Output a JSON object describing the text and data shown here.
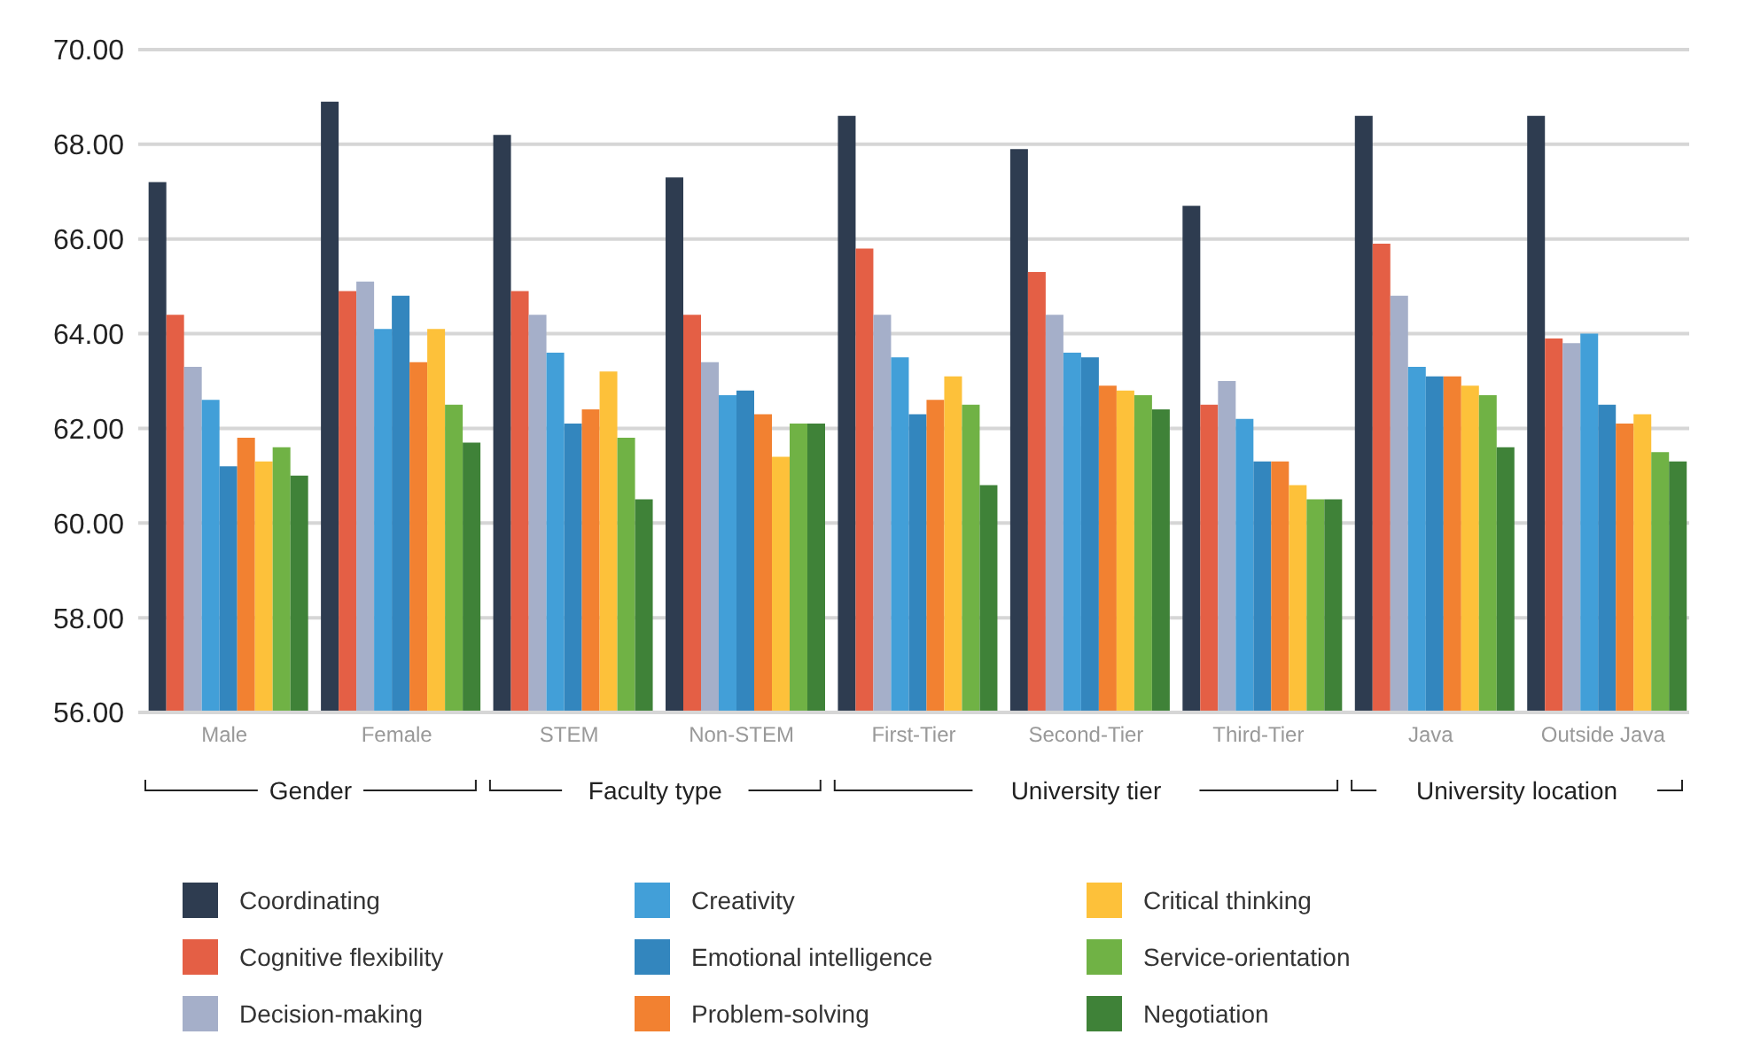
{
  "chart_data": {
    "type": "bar",
    "categories": [
      "Male",
      "Female",
      "STEM",
      "Non-STEM",
      "First-Tier",
      "Second-Tier",
      "Third-Tier",
      "Java",
      "Outside Java"
    ],
    "series": [
      {
        "name": "Coordinating",
        "color": "#2e3c50",
        "values": [
          67.2,
          68.9,
          68.2,
          67.3,
          68.6,
          67.9,
          66.7,
          68.6,
          68.6
        ]
      },
      {
        "name": "Cognitive flexibility",
        "color": "#e45f45",
        "values": [
          64.4,
          64.9,
          64.9,
          64.4,
          65.8,
          65.3,
          62.5,
          65.9,
          63.9
        ]
      },
      {
        "name": "Decision-making",
        "color": "#a5afc9",
        "values": [
          63.3,
          65.1,
          64.4,
          63.4,
          64.4,
          64.4,
          63.0,
          64.8,
          63.8
        ]
      },
      {
        "name": "Creativity",
        "color": "#429fd8",
        "values": [
          62.6,
          64.1,
          63.6,
          62.7,
          63.5,
          63.6,
          62.2,
          63.3,
          64.0
        ]
      },
      {
        "name": "Emotional intelligence",
        "color": "#3386be",
        "values": [
          61.2,
          64.8,
          62.1,
          62.8,
          62.3,
          63.5,
          61.3,
          63.1,
          62.5
        ]
      },
      {
        "name": "Problem-solving",
        "color": "#f28131",
        "values": [
          61.8,
          63.4,
          62.4,
          62.3,
          62.6,
          62.9,
          61.3,
          63.1,
          62.1
        ]
      },
      {
        "name": "Critical thinking",
        "color": "#fdc13a",
        "values": [
          61.3,
          64.1,
          63.2,
          61.4,
          63.1,
          62.8,
          60.8,
          62.9,
          62.3
        ]
      },
      {
        "name": "Service-orientation",
        "color": "#70b245",
        "values": [
          61.6,
          62.5,
          61.8,
          62.1,
          62.5,
          62.7,
          60.5,
          62.7,
          61.5
        ]
      },
      {
        "name": "Negotiation",
        "color": "#3f8238",
        "values": [
          61.0,
          61.7,
          60.5,
          62.1,
          60.8,
          62.4,
          60.5,
          61.6,
          61.3
        ]
      }
    ],
    "ylim": [
      56,
      70
    ],
    "yticks": [
      {
        "value": 56,
        "label": "56.00"
      },
      {
        "value": 58,
        "label": "58.00"
      },
      {
        "value": 60,
        "label": "60.00"
      },
      {
        "value": 62,
        "label": "62.00"
      },
      {
        "value": 64,
        "label": "64.00"
      },
      {
        "value": 66,
        "label": "66.00"
      },
      {
        "value": 68,
        "label": "68.00"
      },
      {
        "value": 70,
        "label": "70.00"
      }
    ],
    "grid": "y",
    "legend": "bottom",
    "annotations": [
      "Gender",
      "Faculty type",
      "University tier",
      "University location"
    ]
  }
}
